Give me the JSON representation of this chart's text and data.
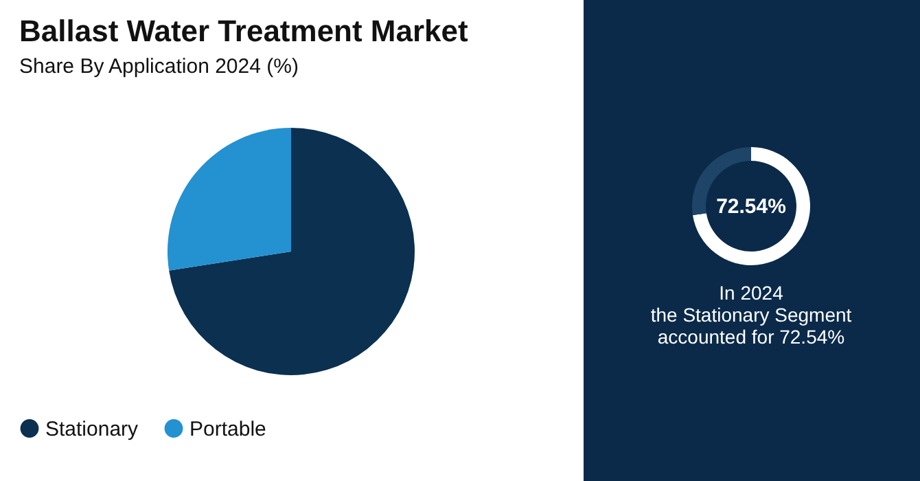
{
  "chart_data": [
    {
      "type": "pie",
      "title": "Ballast Water Treatment Market",
      "subtitle": "Share By Application 2024 (%)",
      "categories": [
        "Stationary",
        "Portable"
      ],
      "values": [
        72.54,
        27.46
      ],
      "colors": [
        "#0b3050",
        "#2491d1"
      ],
      "legend": "bottom"
    },
    {
      "type": "donut",
      "categories": [
        null,
        null
      ],
      "values": [
        72.54,
        27.46
      ],
      "colors": [
        "#ffffff",
        "#1e4468"
      ],
      "annotations": [
        "72.54%",
        "In 2024\nthe Stationary Segment\naccounted for 72.54%"
      ]
    }
  ]
}
